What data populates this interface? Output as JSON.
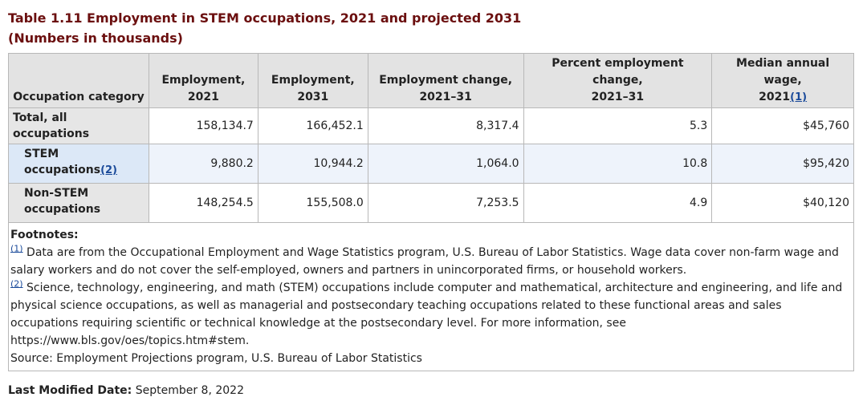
{
  "table": {
    "title": "Table 1.11 Employment in STEM occupations, 2021 and projected 2031",
    "subtitle": "(Numbers in thousands)",
    "headers": {
      "category": "Occupation category",
      "emp2021_a": "Employment,",
      "emp2021_b": "2021",
      "emp2031_a": "Employment,",
      "emp2031_b": "2031",
      "change_a": "Employment change,",
      "change_b": "2021–31",
      "pct_a": "Percent employment change,",
      "pct_b": "2021–31",
      "wage_a": "Median annual wage,",
      "wage_b": "2021",
      "wage_ref": "(1)"
    },
    "rows": [
      {
        "label": "Total, all occupations",
        "emp2021": "158,134.7",
        "emp2031": "166,452.1",
        "change": "8,317.4",
        "pct": "5.3",
        "wage": "$45,760"
      },
      {
        "label_a": "STEM",
        "label_b": "occupations",
        "ref": "(2)",
        "emp2021": "9,880.2",
        "emp2031": "10,944.2",
        "change": "1,064.0",
        "pct": "10.8",
        "wage": "$95,420"
      },
      {
        "label_a": "Non-STEM",
        "label_b": "occupations",
        "emp2021": "148,254.5",
        "emp2031": "155,508.0",
        "change": "7,253.5",
        "pct": "4.9",
        "wage": "$40,120"
      }
    ],
    "footnotes": {
      "title": "Footnotes:",
      "fn1_ref": "(1)",
      "fn1_text": " Data are from the Occupational Employment and Wage Statistics program, U.S. Bureau of Labor Statistics. Wage data cover non-farm wage and salary workers and do not cover the self-employed, owners and partners in unincorporated firms, or household workers.",
      "fn2_ref": "(2)",
      "fn2_text": " Science, technology, engineering, and math (STEM) occupations include computer and mathematical, architecture and engineering, and life and physical science occupations, as well as managerial and postsecondary teaching occupations related to these functional areas and sales occupations requiring scientific or technical knowledge at the postsecondary level. For more information, see https://www.bls.gov/oes/topics.htm#stem.",
      "source": "Source: Employment Projections program, U.S. Bureau of Labor Statistics"
    }
  },
  "modified": {
    "label": "Last Modified Date:",
    "value": " September 8, 2022"
  },
  "colors": {
    "title": "#6b0f0f",
    "link": "#1a4a9a",
    "header_bg": "#e3e3e3",
    "stem_row_bg": "#eef3fb"
  }
}
